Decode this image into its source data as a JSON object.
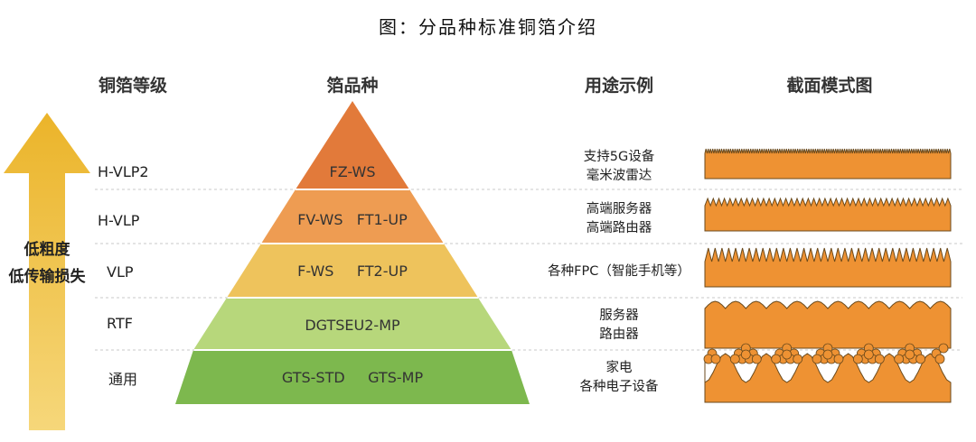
{
  "title": "图：分品种标准铜箔介绍",
  "headers": {
    "grade": "铜箔等级",
    "variety": "箔品种",
    "usage": "用途示例",
    "cross_section": "截面模式图"
  },
  "arrow": {
    "line1": "低粗度",
    "line2": "低传输损失",
    "color": "#F1B62B"
  },
  "tiers": [
    {
      "grade": "H-VLP2",
      "products": "FZ-WS",
      "usage": [
        "支持5G设备",
        "毫米波雷达"
      ],
      "color": "#E27A3A"
    },
    {
      "grade": "H-VLP",
      "products": "FV-WS   FT1-UP",
      "usage": [
        "高端服务器",
        "高端路由器"
      ],
      "color": "#EE9C52"
    },
    {
      "grade": "VLP",
      "products": "F-WS     FT2-UP",
      "usage": [
        "各种FPC（智能手机等）"
      ],
      "color": "#EEC35C"
    },
    {
      "grade": "RTF",
      "products": "DGTSEU2-MP",
      "usage": [
        "服务器",
        "路由器"
      ],
      "color": "#B7D77B"
    },
    {
      "grade": "通用",
      "products": "GTS-STD     GTS-MP",
      "usage": [
        "家电",
        "各种电子设备"
      ],
      "color": "#7DB84E"
    }
  ],
  "cross_section_color": "#EE9233"
}
